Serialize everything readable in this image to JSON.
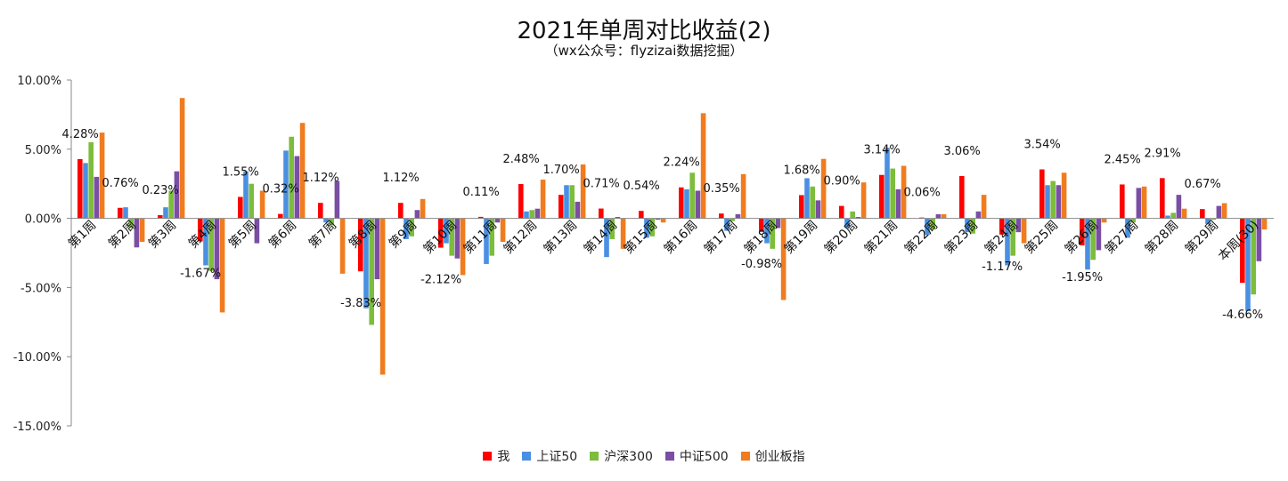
{
  "chart_data": {
    "type": "bar",
    "title": "2021年单周对比收益(2)",
    "subtitle": "（wx公众号：flyzizai数据挖掘）",
    "ylim": [
      -15,
      10
    ],
    "yticks": [
      10,
      5,
      0,
      -5,
      -10,
      -15
    ],
    "ytick_labels": [
      "10.00%",
      "5.00%",
      "0.00%",
      "-5.00%",
      "-10.00%",
      "-15.00%"
    ],
    "grid": false,
    "legend_position": "bottom",
    "categories": [
      "第1周",
      "第2周",
      "第3周",
      "第4周",
      "第5周",
      "第6周",
      "第7周",
      "第8周",
      "第9周",
      "第10周",
      "第11周",
      "第12周",
      "第13周",
      "第14周",
      "第15周",
      "第16周",
      "第17周",
      "第18周",
      "第19周",
      "第20周",
      "第21周",
      "第22周",
      "第23周",
      "第24周",
      "第25周",
      "第26周",
      "第27周",
      "第28周",
      "第29周",
      "本周(30)"
    ],
    "series": [
      {
        "name": "我",
        "color": "#ff0000",
        "values": [
          4.28,
          0.76,
          0.23,
          -1.67,
          1.55,
          0.32,
          1.12,
          -3.83,
          1.12,
          -2.12,
          0.11,
          2.48,
          1.7,
          0.71,
          0.54,
          2.24,
          0.35,
          -0.98,
          1.68,
          0.9,
          3.14,
          0.06,
          3.06,
          -1.17,
          3.54,
          -1.95,
          2.45,
          2.91,
          0.67,
          -4.66
        ]
      },
      {
        "name": "上证50",
        "color": "#4a90e2",
        "values": [
          4.0,
          0.8,
          0.8,
          -3.4,
          3.4,
          4.9,
          -0.3,
          -6.5,
          -1.5,
          -1.8,
          -3.3,
          0.5,
          2.4,
          -2.8,
          -1.4,
          2.1,
          -0.9,
          -1.8,
          2.9,
          -0.7,
          5.1,
          -1.2,
          -1.0,
          -3.4,
          2.4,
          -3.7,
          -1.4,
          0.2,
          -0.4,
          -6.7
        ]
      },
      {
        "name": "沪深300",
        "color": "#7cbd3c",
        "values": [
          5.5,
          -0.7,
          2.0,
          -3.8,
          2.5,
          5.9,
          -0.5,
          -7.7,
          -1.3,
          -2.7,
          -2.7,
          0.6,
          2.4,
          -1.5,
          -1.3,
          3.3,
          -0.2,
          -2.2,
          2.3,
          0.5,
          3.6,
          -0.8,
          -1.1,
          -2.7,
          2.7,
          -3.0,
          -0.3,
          0.4,
          -0.1,
          -5.5
        ]
      },
      {
        "name": "中证500",
        "color": "#7a4fa3",
        "values": [
          3.0,
          -2.1,
          3.4,
          -4.4,
          -1.8,
          4.5,
          2.7,
          -4.4,
          0.6,
          -2.9,
          -0.3,
          0.7,
          1.2,
          0.1,
          -0.1,
          2.0,
          0.3,
          -0.7,
          1.3,
          0.1,
          2.1,
          0.3,
          0.5,
          -1.0,
          2.4,
          -2.3,
          2.2,
          1.7,
          0.9,
          -3.1
        ]
      },
      {
        "name": "创业板指",
        "color": "#f07c1f",
        "values": [
          6.2,
          -1.7,
          8.7,
          -6.8,
          2.0,
          6.9,
          -4.0,
          -11.3,
          1.4,
          -4.1,
          -1.7,
          2.8,
          3.9,
          -2.2,
          -0.3,
          7.6,
          3.2,
          -5.9,
          4.3,
          2.6,
          3.8,
          0.3,
          1.7,
          -1.8,
          3.3,
          -0.3,
          2.3,
          0.7,
          1.1,
          -0.8
        ]
      }
    ],
    "data_labels": [
      "4.28%",
      "0.76%",
      "0.23%",
      "-1.67%",
      "1.55%",
      "0.32%",
      "1.12%",
      "-3.83%",
      "1.12%",
      "-2.12%",
      "0.11%",
      "2.48%",
      "1.70%",
      "0.71%",
      "0.54%",
      "2.24%",
      "0.35%",
      "-0.98%",
      "1.68%",
      "0.90%",
      "3.14%",
      "0.06%",
      "3.06%",
      "-1.17%",
      "3.54%",
      "-1.95%",
      "2.45%",
      "2.91%",
      "0.67%",
      "-4.66%"
    ]
  }
}
